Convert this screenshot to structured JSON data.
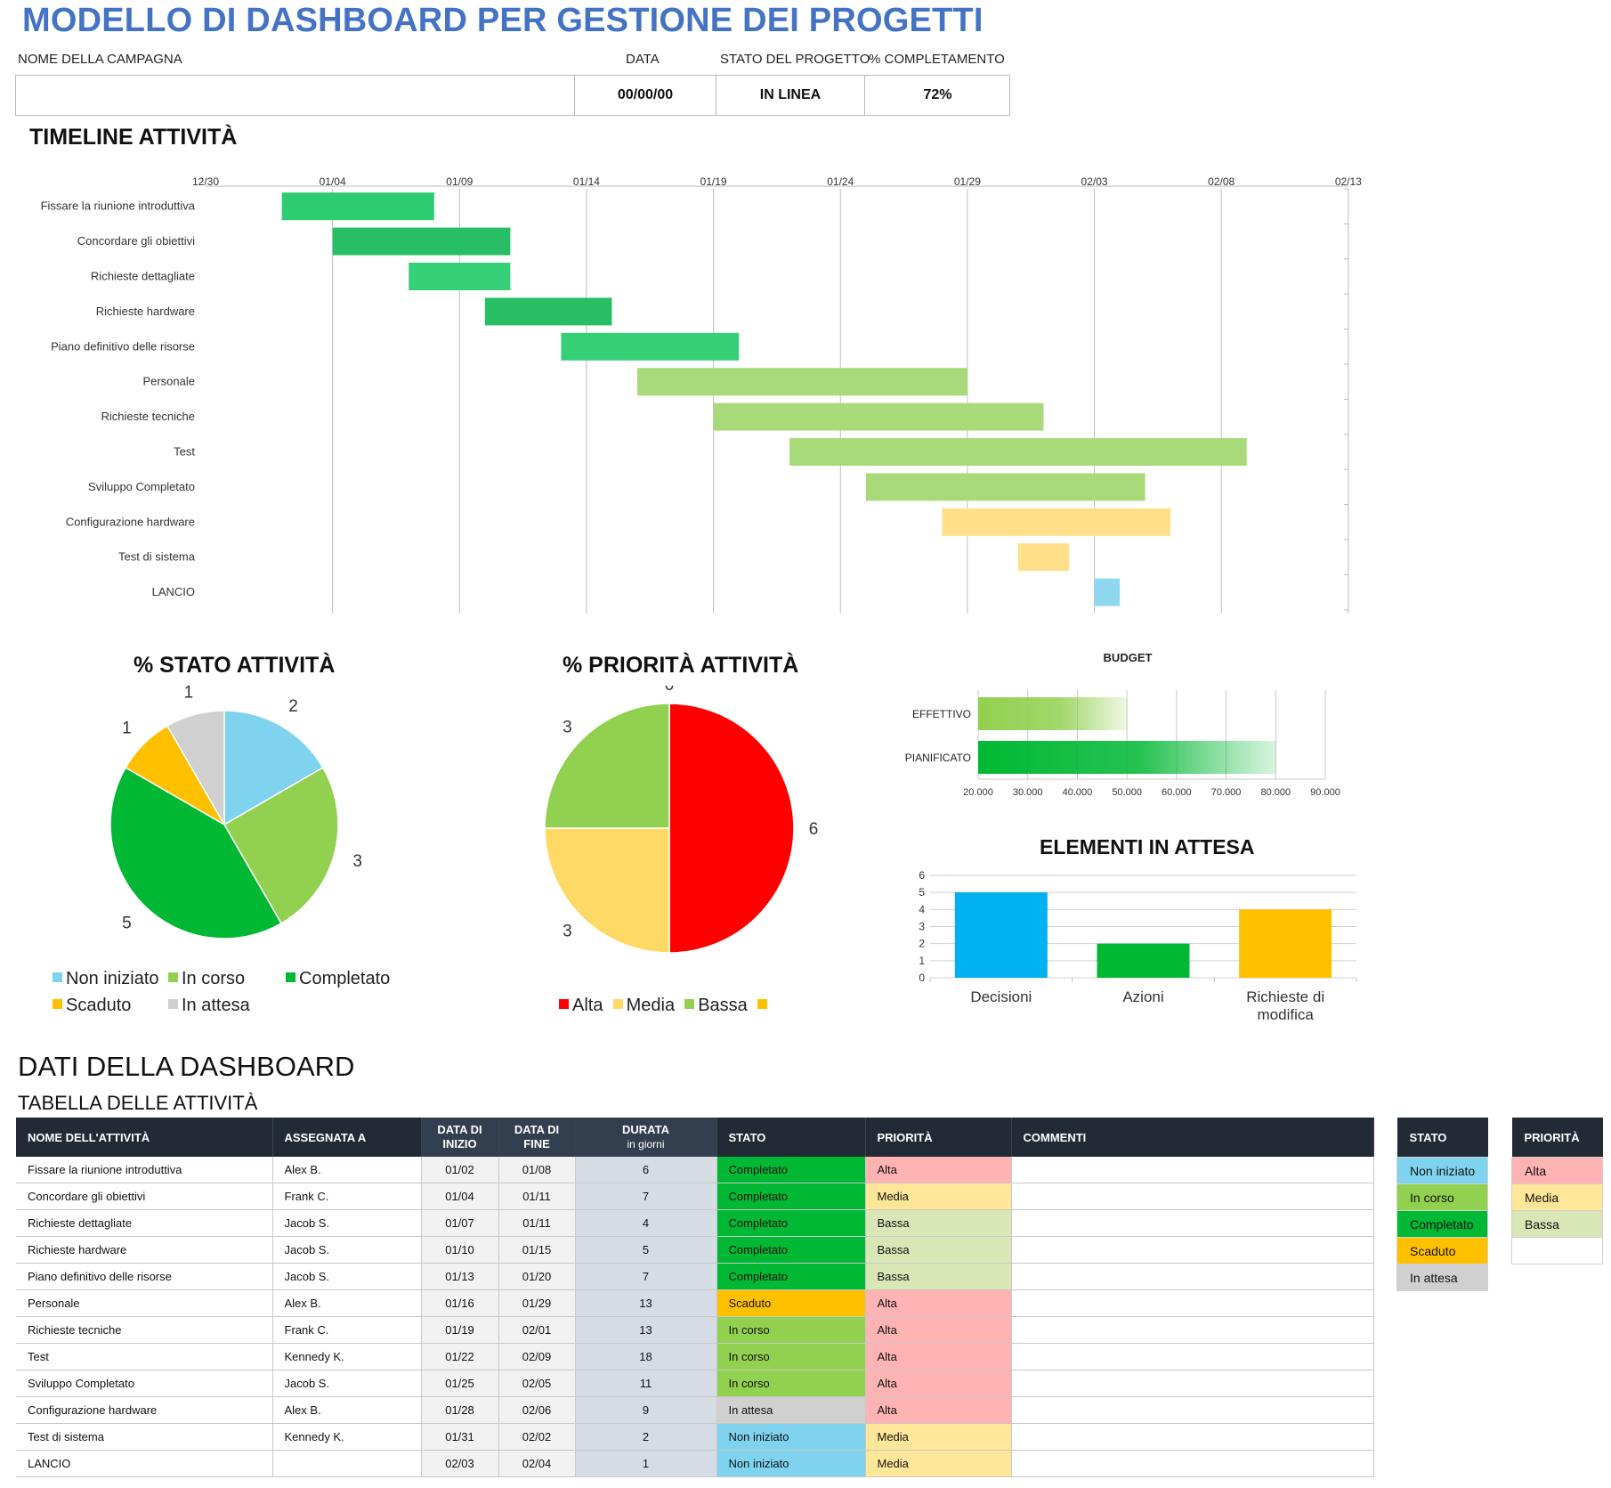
{
  "title": "MODELLO DI DASHBOARD PER GESTIONE DEI PROGETTI",
  "header": {
    "campaign_label": "NOME DELLA CAMPAGNA",
    "date_label": "DATA",
    "status_label": "STATO DEL PROGETTO",
    "completion_label": "% COMPLETAMENTO",
    "campaign_value": "",
    "date_value": "00/00/00",
    "status_value": "IN LINEA",
    "completion_value": "72%"
  },
  "sections": {
    "timeline": "TIMELINE ATTIVITÀ",
    "status": "% STATO ATTIVITÀ",
    "priority": "% PRIORITÀ ATTIVITÀ",
    "budget": "BUDGET",
    "pending": "ELEMENTI IN ATTESA",
    "dashboard_data": "DATI DELLA DASHBOARD",
    "task_table": "TABELLA DELLE ATTIVITÀ"
  },
  "colors": {
    "title": "#4472C4",
    "non_iniziato": "#7FD3EF",
    "in_corso": "#92D050",
    "completato": "#00B833",
    "scaduto": "#FFC000",
    "in_attesa": "#D0D0D0",
    "alta": "#FF0000",
    "media": "#FFD966",
    "bassa": "#92D050",
    "alta_bg": "#FFB3B3",
    "media_bg": "#FFE699",
    "bassa_bg": "#D9E6B5"
  },
  "chart_data": [
    {
      "type": "gantt",
      "title": "TIMELINE ATTIVITÀ",
      "x_ticks": [
        "12/30",
        "01/04",
        "01/09",
        "01/14",
        "01/19",
        "01/24",
        "01/29",
        "02/03",
        "02/08",
        "02/13"
      ],
      "x_range": [
        "12/30",
        "02/13"
      ],
      "tasks": [
        {
          "name": "Fissare la riunione introduttiva",
          "start": "01/02",
          "end": "01/08",
          "color": "#2ECC71"
        },
        {
          "name": "Concordare gli obiettivi",
          "start": "01/04",
          "end": "01/11",
          "color": "#27BE65"
        },
        {
          "name": "Richieste dettagliate",
          "start": "01/07",
          "end": "01/11",
          "color": "#35CF78"
        },
        {
          "name": "Richieste hardware",
          "start": "01/10",
          "end": "01/15",
          "color": "#27BE65"
        },
        {
          "name": "Piano definitivo delle risorse",
          "start": "01/13",
          "end": "01/20",
          "color": "#35CF78"
        },
        {
          "name": "Personale",
          "start": "01/16",
          "end": "01/29",
          "color": "#A9DA7A"
        },
        {
          "name": "Richieste tecniche",
          "start": "01/19",
          "end": "02/01",
          "color": "#A9DA7A"
        },
        {
          "name": "Test",
          "start": "01/22",
          "end": "02/09",
          "color": "#A9DA7A"
        },
        {
          "name": "Sviluppo Completato",
          "start": "01/25",
          "end": "02/05",
          "color": "#A9DA7A"
        },
        {
          "name": "Configurazione hardware",
          "start": "01/28",
          "end": "02/06",
          "color": "#FFE08A"
        },
        {
          "name": "Test di sistema",
          "start": "01/31",
          "end": "02/02",
          "color": "#FFE08A"
        },
        {
          "name": "LANCIO",
          "start": "02/03",
          "end": "02/04",
          "color": "#8FD8F0"
        }
      ]
    },
    {
      "type": "pie",
      "title": "% STATO ATTIVITÀ",
      "slices": [
        {
          "name": "Non iniziato",
          "value": 2,
          "label": "2",
          "color": "#7FD3EF"
        },
        {
          "name": "In corso",
          "value": 3,
          "label": "3",
          "color": "#92D050"
        },
        {
          "name": "Completato",
          "value": 5,
          "label": "5",
          "color": "#00B833"
        },
        {
          "name": "Scaduto",
          "value": 1,
          "label": "1",
          "color": "#FFC000"
        },
        {
          "name": "In attesa",
          "value": 1,
          "label": "1",
          "color": "#D0D0D0"
        }
      ]
    },
    {
      "type": "pie",
      "title": "% PRIORITÀ ATTIVITÀ",
      "slices": [
        {
          "name": "Alta",
          "value": 6,
          "label": "6",
          "color": "#FF0000"
        },
        {
          "name": "Media",
          "value": 3,
          "label": "3",
          "color": "#FFD966"
        },
        {
          "name": "Bassa",
          "value": 3,
          "label": "3",
          "color": "#92D050"
        },
        {
          "name": "",
          "value": 0,
          "label": "0",
          "color": "#FFC000"
        }
      ]
    },
    {
      "type": "bar",
      "orientation": "horizontal",
      "title": "BUDGET",
      "categories": [
        "EFFETTIVO",
        "PIANIFICATO"
      ],
      "values": [
        50000,
        80000
      ],
      "xlim": [
        20000,
        90000
      ],
      "x_ticks": [
        "20.000",
        "30.000",
        "40.000",
        "50.000",
        "60.000",
        "70.000",
        "80.000",
        "90.000"
      ],
      "colors": [
        "#92D050",
        "#00B833"
      ]
    },
    {
      "type": "bar",
      "title": "ELEMENTI IN ATTESA",
      "categories": [
        "Decisioni",
        "Azioni",
        "Richieste di modifica"
      ],
      "values": [
        5,
        2,
        4
      ],
      "ylim": [
        0,
        6
      ],
      "y_ticks": [
        "0",
        "1",
        "2",
        "3",
        "4",
        "5",
        "6"
      ],
      "colors": [
        "#00B0F0",
        "#00B833",
        "#FFC000"
      ]
    }
  ],
  "table": {
    "headers": {
      "name": "NOME DELL'ATTIVITÀ",
      "assigned": "ASSEGNATA A",
      "start_1": "DATA DI",
      "start_2": "INIZIO",
      "end_1": "DATA DI",
      "end_2": "FINE",
      "dur_1": "DURATA",
      "dur_2": "in giorni",
      "status": "STATO",
      "priority": "PRIORITÀ",
      "comments": "COMMENTI"
    },
    "rows": [
      {
        "name": "Fissare la riunione introduttiva",
        "assigned": "Alex B.",
        "start": "01/02",
        "end": "01/08",
        "duration": "6",
        "status": "Completato",
        "priority": "Alta",
        "comments": ""
      },
      {
        "name": "Concordare gli obiettivi",
        "assigned": "Frank C.",
        "start": "01/04",
        "end": "01/11",
        "duration": "7",
        "status": "Completato",
        "priority": "Media",
        "comments": ""
      },
      {
        "name": "Richieste dettagliate",
        "assigned": "Jacob S.",
        "start": "01/07",
        "end": "01/11",
        "duration": "4",
        "status": "Completato",
        "priority": "Bassa",
        "comments": ""
      },
      {
        "name": "Richieste hardware",
        "assigned": "Jacob S.",
        "start": "01/10",
        "end": "01/15",
        "duration": "5",
        "status": "Completato",
        "priority": "Bassa",
        "comments": ""
      },
      {
        "name": "Piano definitivo delle risorse",
        "assigned": "Jacob S.",
        "start": "01/13",
        "end": "01/20",
        "duration": "7",
        "status": "Completato",
        "priority": "Bassa",
        "comments": ""
      },
      {
        "name": "Personale",
        "assigned": "Alex B.",
        "start": "01/16",
        "end": "01/29",
        "duration": "13",
        "status": "Scaduto",
        "priority": "Alta",
        "comments": ""
      },
      {
        "name": "Richieste tecniche",
        "assigned": "Frank C.",
        "start": "01/19",
        "end": "02/01",
        "duration": "13",
        "status": "In corso",
        "priority": "Alta",
        "comments": ""
      },
      {
        "name": "Test",
        "assigned": "Kennedy K.",
        "start": "01/22",
        "end": "02/09",
        "duration": "18",
        "status": "In corso",
        "priority": "Alta",
        "comments": ""
      },
      {
        "name": "Sviluppo Completato",
        "assigned": "Jacob S.",
        "start": "01/25",
        "end": "02/05",
        "duration": "11",
        "status": "In corso",
        "priority": "Alta",
        "comments": ""
      },
      {
        "name": "Configurazione hardware",
        "assigned": "Alex B.",
        "start": "01/28",
        "end": "02/06",
        "duration": "9",
        "status": "In attesa",
        "priority": "Alta",
        "comments": ""
      },
      {
        "name": "Test di sistema",
        "assigned": "Kennedy K.",
        "start": "01/31",
        "end": "02/02",
        "duration": "2",
        "status": "Non iniziato",
        "priority": "Media",
        "comments": ""
      },
      {
        "name": "LANCIO",
        "assigned": "",
        "start": "02/03",
        "end": "02/04",
        "duration": "1",
        "status": "Non iniziato",
        "priority": "Media",
        "comments": ""
      }
    ]
  },
  "status_key": {
    "header": "STATO",
    "items": [
      "Non iniziato",
      "In corso",
      "Completato",
      "Scaduto",
      "In attesa"
    ]
  },
  "priority_key": {
    "header": "PRIORITÀ",
    "items": [
      "Alta",
      "Media",
      "Bassa",
      ""
    ]
  }
}
